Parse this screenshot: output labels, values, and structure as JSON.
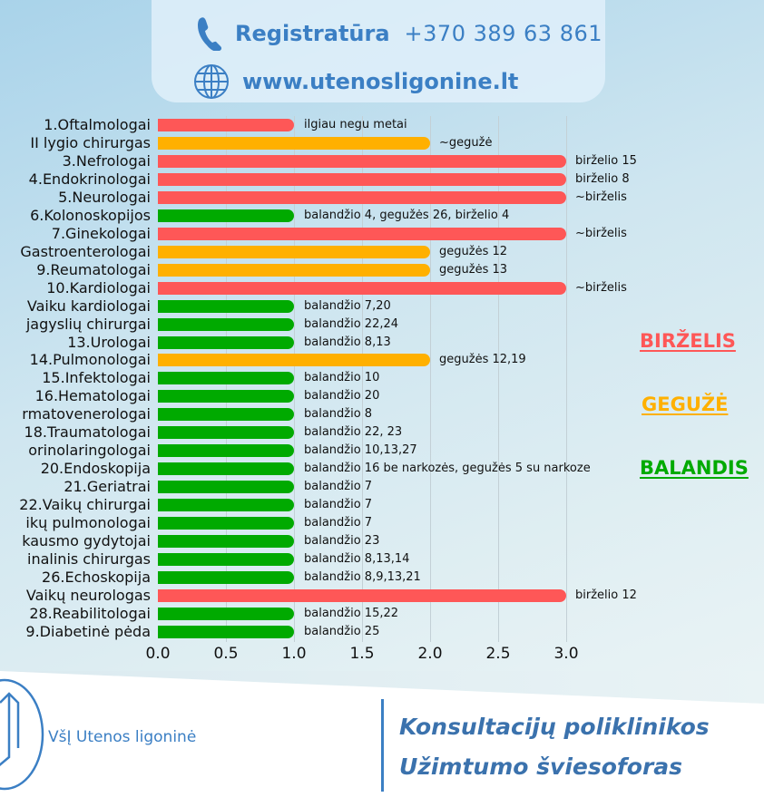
{
  "header": {
    "registry_label": "Registratūra",
    "phone": "+370 389 63 861",
    "website": "www.utenosligonine.lt",
    "icons": [
      "phone-icon",
      "globe-icon"
    ]
  },
  "colors": {
    "red": "#fe5757",
    "orange": "#ffb000",
    "green": "#00aa00",
    "brand": "#3b7fc4"
  },
  "legend": [
    {
      "label": "BIRŽELIS",
      "color": "#fe5757"
    },
    {
      "label": "GEGUŽĖ",
      "color": "#ffb000"
    },
    {
      "label": "BALANDIS",
      "color": "#00aa00"
    }
  ],
  "chart_data": {
    "type": "bar",
    "orientation": "horizontal",
    "xlim": [
      0,
      3
    ],
    "xticks": [
      "0.0",
      "0.5",
      "1.0",
      "1.5",
      "2.0",
      "2.5",
      "3.0"
    ],
    "grid": true,
    "legend_placement": "right",
    "categories": [
      "1.Oftalmologai",
      "II lygio chirurgas",
      "3.Nefrologai",
      "4.Endokrinologai",
      "5.Neurologai",
      "6.Kolonoskopijos",
      "7.Ginekologai",
      "Gastroenterologai",
      "9.Reumatologai",
      "10.Kardiologai",
      "Vaiku kardiologai",
      "jagyslių chirurgai",
      "13.Urologai",
      "14.Pulmonologai",
      "15.Infektologai",
      "16.Hematologai",
      "rmatovenerologai",
      "18.Traumatologai",
      "orinolaringologai",
      "20.Endoskopija",
      "21.Geriatrai",
      "22.Vaikų chirurgai",
      "ikų pulmonologai",
      "kausmo gydytojai",
      "inalinis chirurgas",
      "26.Echoskopija",
      "Vaikų neurologas",
      "28.Reabilitologai",
      "9.Diabetinė pėda"
    ],
    "values": [
      1,
      2,
      3,
      3,
      3,
      1,
      3,
      2,
      2,
      3,
      1,
      1,
      1,
      2,
      1,
      1,
      1,
      1,
      1,
      1,
      1,
      1,
      1,
      1,
      1,
      1,
      3,
      1,
      1
    ],
    "bar_colors": [
      "red",
      "orange",
      "red",
      "red",
      "red",
      "green",
      "red",
      "orange",
      "orange",
      "red",
      "green",
      "green",
      "green",
      "orange",
      "green",
      "green",
      "green",
      "green",
      "green",
      "green",
      "green",
      "green",
      "green",
      "green",
      "green",
      "green",
      "red",
      "green",
      "green"
    ],
    "labels": [
      "ilgiau negu metai",
      "~gegužė",
      "birželio 15",
      "birželio 8",
      "~birželis",
      "balandžio 4, gegužės 26, birželio 4",
      "~birželis",
      "gegužės 12",
      "gegužės 13",
      "~birželis",
      "balandžio 7,20",
      "balandžio 22,24",
      "balandžio 8,13",
      "gegužės 12,19",
      "balandžio 10",
      "balandžio 20",
      "balandžio 8",
      "balandžio 22, 23",
      "balandžio 10,13,27",
      "balandžio 16 be narkozės, gegužės 5 su narkoze",
      "balandžio 7",
      "balandžio 7",
      "balandžio 7",
      "balandžio 23",
      "balandžio 8,13,14",
      "balandžio 8,9,13,21",
      "birželio 12",
      "balandžio 15,22",
      "balandžio 25"
    ]
  },
  "footer": {
    "org_name": "VšĮ Utenos ligoninė",
    "title_line1": "Konsultacijų poliklinikos",
    "title_line2": "Užimtumo šviesoforas"
  }
}
